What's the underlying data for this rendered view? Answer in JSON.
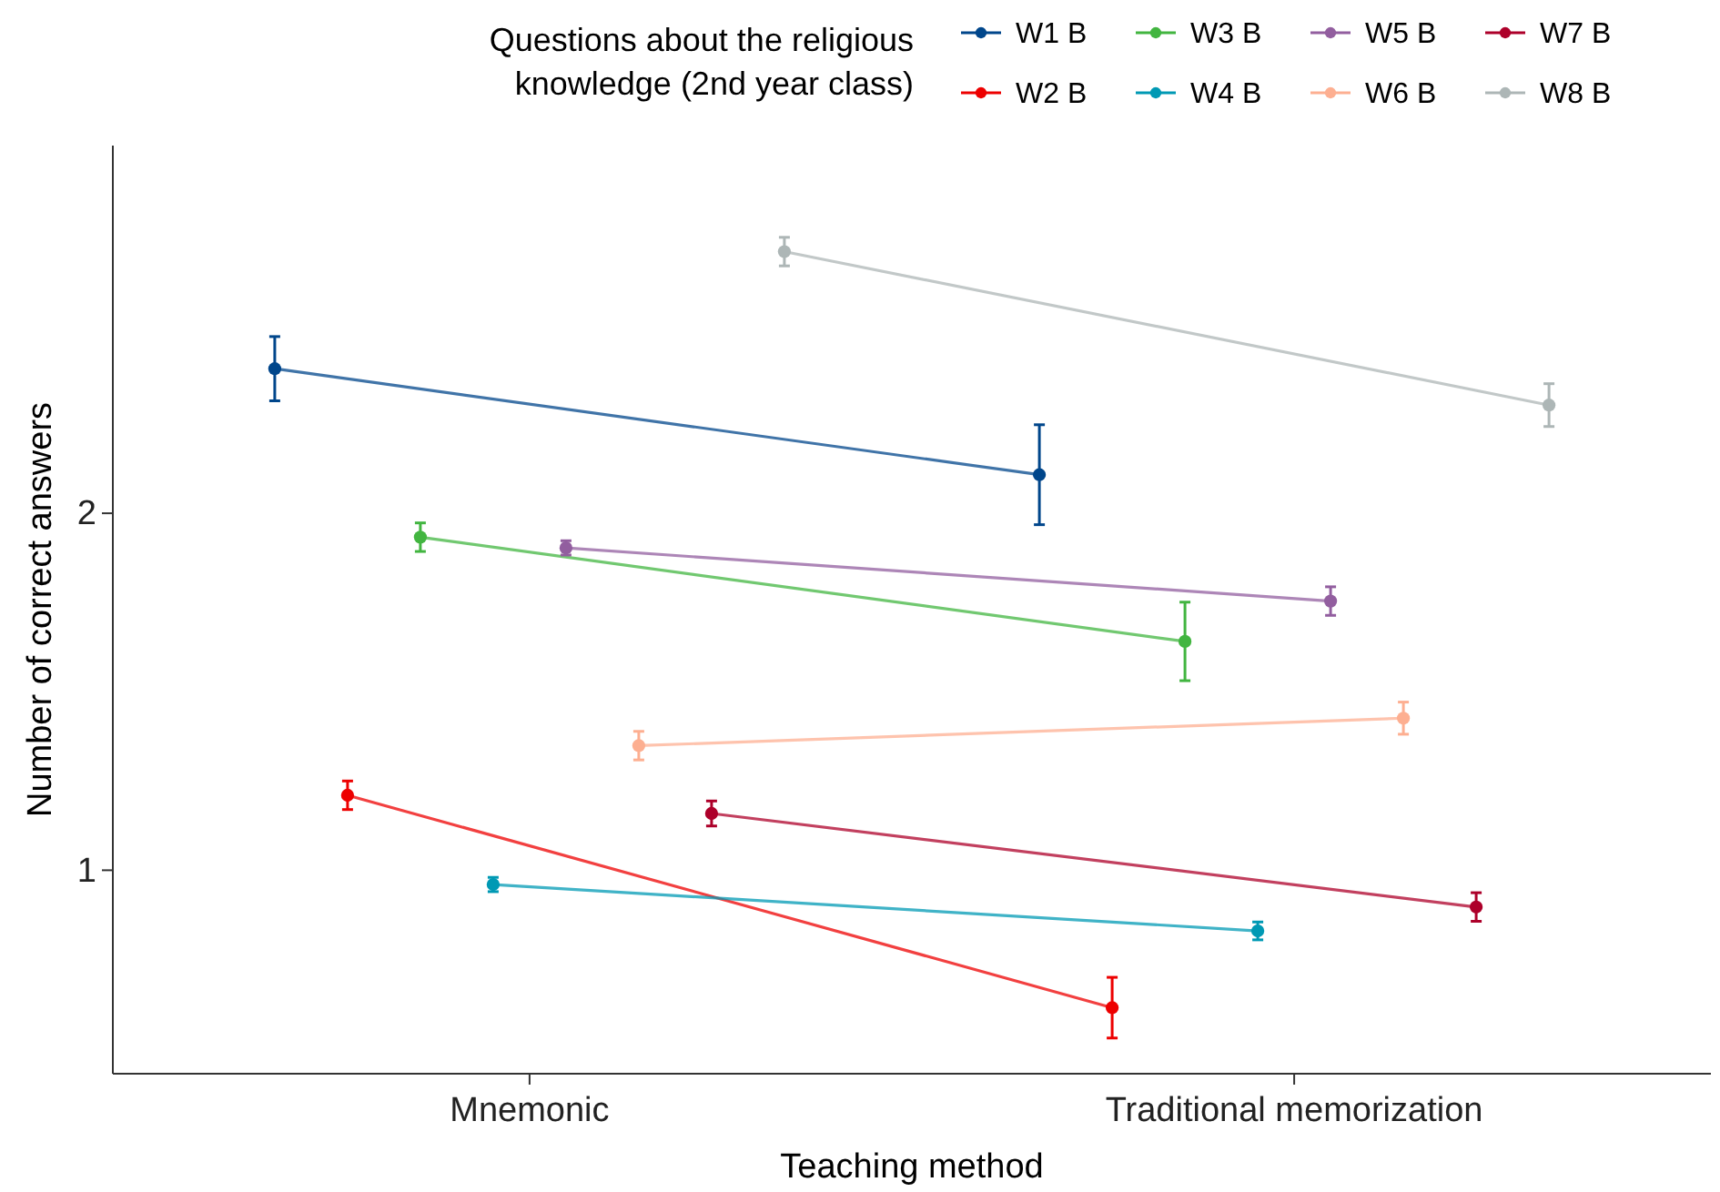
{
  "chart_data": {
    "type": "line",
    "xlabel": "Teaching method",
    "ylabel": "Number of correct answers",
    "legend_title": "Questions about the religious\nknowledge (2nd year class)",
    "categories": [
      "Mnemonic",
      "Traditional memorization"
    ],
    "series": [
      {
        "name": "W1 B",
        "color": "#00468b",
        "values": [
          2.405,
          2.108
        ],
        "errors": [
          0.09,
          0.14
        ]
      },
      {
        "name": "W2 B",
        "color": "#ed0000",
        "values": [
          1.21,
          0.615
        ],
        "errors": [
          0.04,
          0.085
        ]
      },
      {
        "name": "W3 B",
        "color": "#42b540",
        "values": [
          1.933,
          1.641
        ],
        "errors": [
          0.04,
          0.11
        ]
      },
      {
        "name": "W4 B",
        "color": "#0099b4",
        "values": [
          0.96,
          0.83
        ],
        "errors": [
          0.02,
          0.025
        ]
      },
      {
        "name": "W5 B",
        "color": "#925e9f",
        "values": [
          1.903,
          1.754
        ],
        "errors": [
          0.02,
          0.04
        ]
      },
      {
        "name": "W6 B",
        "color": "#fdaf91",
        "values": [
          1.349,
          1.426
        ],
        "errors": [
          0.04,
          0.045
        ]
      },
      {
        "name": "W7 B",
        "color": "#ad002a",
        "values": [
          1.159,
          0.897
        ],
        "errors": [
          0.035,
          0.04
        ]
      },
      {
        "name": "W8 B",
        "color": "#adb6b6",
        "values": [
          2.733,
          2.303
        ],
        "errors": [
          0.04,
          0.06
        ]
      }
    ],
    "ylim": [
      0.43,
      3.03
    ],
    "yticks": [
      1,
      2
    ],
    "grid": false,
    "legend": "top",
    "marker": "circle",
    "line_style": "solid"
  }
}
